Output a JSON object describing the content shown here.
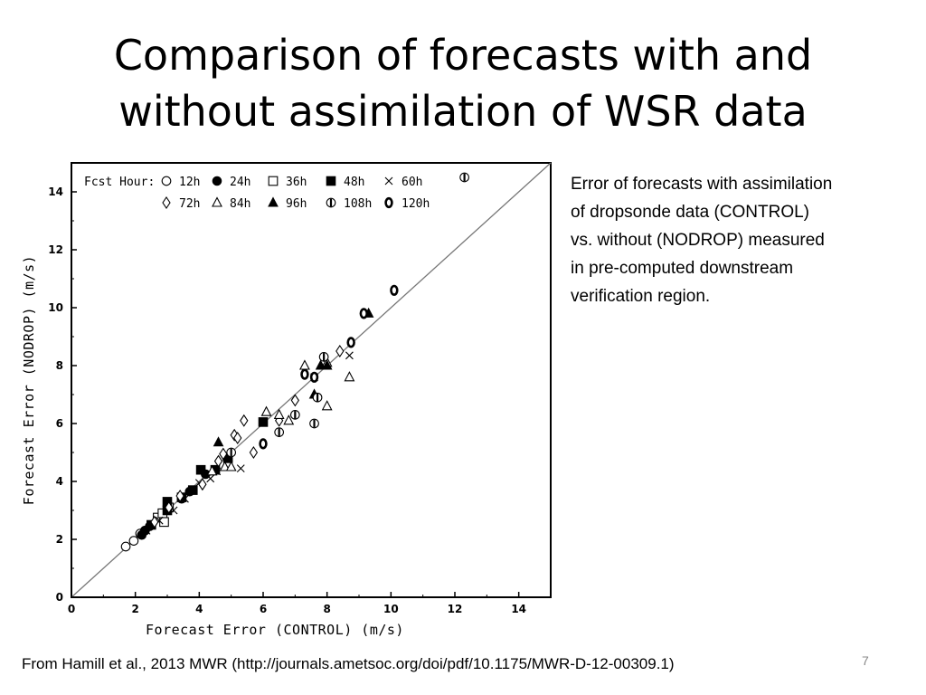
{
  "slide": {
    "title_lines": [
      "Comparison of forecasts with and",
      "without assimilation of WSR data"
    ],
    "description_lines": [
      "Error of forecasts with assimilation",
      "of dropsonde data (CONTROL)",
      "vs. without (NODROP) measured",
      "in pre-computed downstream",
      "verification region."
    ],
    "source": "From Hamill et al., 2013 MWR (http://journals.ametsoc.org/doi/pdf/10.1175/MWR-D-12-00309.1)",
    "page_number": "7"
  },
  "colors": {
    "marker": "#000000",
    "diagonal": "#777777",
    "text": "#000000"
  },
  "chart_data": {
    "type": "scatter",
    "xlabel": "Forecast Error (CONTROL) (m/s)",
    "ylabel": "Forecast Error (NODROP) (m/s)",
    "xlim": [
      0,
      15
    ],
    "ylim": [
      0,
      15
    ],
    "xticks": [
      0,
      2,
      4,
      6,
      8,
      10,
      12,
      14
    ],
    "yticks": [
      0,
      2,
      4,
      6,
      8,
      10,
      12,
      14
    ],
    "grid": false,
    "legend_position": "top-left",
    "legend_title": "Fcst Hour:",
    "reference_line": "y = x",
    "series": [
      {
        "name": "12h",
        "marker": "open-circle",
        "points": [
          [
            1.7,
            1.75
          ],
          [
            1.95,
            1.95
          ],
          [
            2.15,
            2.2
          ],
          [
            2.3,
            2.3
          ]
        ]
      },
      {
        "name": "24h",
        "marker": "filled-circle",
        "points": [
          [
            2.2,
            2.15
          ],
          [
            2.3,
            2.3
          ],
          [
            2.45,
            2.45
          ],
          [
            3.45,
            3.4
          ],
          [
            3.7,
            3.65
          ],
          [
            4.2,
            4.25
          ]
        ]
      },
      {
        "name": "36h",
        "marker": "open-square",
        "points": [
          [
            2.7,
            2.75
          ],
          [
            2.85,
            2.9
          ],
          [
            3.05,
            3.1
          ],
          [
            2.9,
            2.6
          ]
        ]
      },
      {
        "name": "48h",
        "marker": "filled-square",
        "points": [
          [
            2.5,
            2.5
          ],
          [
            3.0,
            3.3
          ],
          [
            3.0,
            3.0
          ],
          [
            3.45,
            3.45
          ],
          [
            3.8,
            3.7
          ],
          [
            4.05,
            4.4
          ],
          [
            4.5,
            4.4
          ],
          [
            4.9,
            4.8
          ],
          [
            6.0,
            6.05
          ]
        ]
      },
      {
        "name": "60h",
        "marker": "cross",
        "points": [
          [
            2.35,
            2.3
          ],
          [
            2.75,
            2.65
          ],
          [
            3.2,
            3.0
          ],
          [
            3.55,
            3.4
          ],
          [
            4.0,
            3.95
          ],
          [
            4.35,
            4.1
          ],
          [
            4.55,
            4.35
          ],
          [
            5.3,
            4.45
          ],
          [
            7.6,
            7.6
          ],
          [
            8.7,
            8.35
          ]
        ]
      },
      {
        "name": "72h",
        "marker": "open-diamond",
        "points": [
          [
            2.6,
            2.6
          ],
          [
            3.05,
            3.1
          ],
          [
            3.4,
            3.5
          ],
          [
            4.1,
            3.9
          ],
          [
            4.6,
            4.7
          ],
          [
            4.75,
            4.95
          ],
          [
            5.1,
            5.6
          ],
          [
            5.2,
            5.5
          ],
          [
            5.4,
            6.1
          ],
          [
            5.7,
            5.0
          ],
          [
            6.5,
            6.1
          ],
          [
            7.0,
            6.8
          ],
          [
            8.4,
            8.5
          ]
        ]
      },
      {
        "name": "84h",
        "marker": "open-triangle",
        "points": [
          [
            4.4,
            4.35
          ],
          [
            4.8,
            4.5
          ],
          [
            5.0,
            4.5
          ],
          [
            6.1,
            6.4
          ],
          [
            6.5,
            6.3
          ],
          [
            6.8,
            6.1
          ],
          [
            7.3,
            8.0
          ],
          [
            8.0,
            8.1
          ],
          [
            8.0,
            6.6
          ],
          [
            8.7,
            7.6
          ]
        ]
      },
      {
        "name": "96h",
        "marker": "filled-triangle",
        "points": [
          [
            4.6,
            5.35
          ],
          [
            7.6,
            7.0
          ],
          [
            7.8,
            8.0
          ],
          [
            8.0,
            8.0
          ],
          [
            9.3,
            9.8
          ]
        ]
      },
      {
        "name": "108h",
        "marker": "circle-vertical-bar",
        "points": [
          [
            5.0,
            5.0
          ],
          [
            6.5,
            5.7
          ],
          [
            7.0,
            6.3
          ],
          [
            7.6,
            6.0
          ],
          [
            7.7,
            6.9
          ],
          [
            7.9,
            8.3
          ],
          [
            12.3,
            14.5
          ]
        ]
      },
      {
        "name": "120h",
        "marker": "thick-oval",
        "points": [
          [
            6.0,
            5.3
          ],
          [
            7.3,
            7.7
          ],
          [
            7.6,
            7.6
          ],
          [
            8.75,
            8.8
          ],
          [
            9.15,
            9.8
          ],
          [
            10.1,
            10.6
          ]
        ]
      }
    ]
  }
}
